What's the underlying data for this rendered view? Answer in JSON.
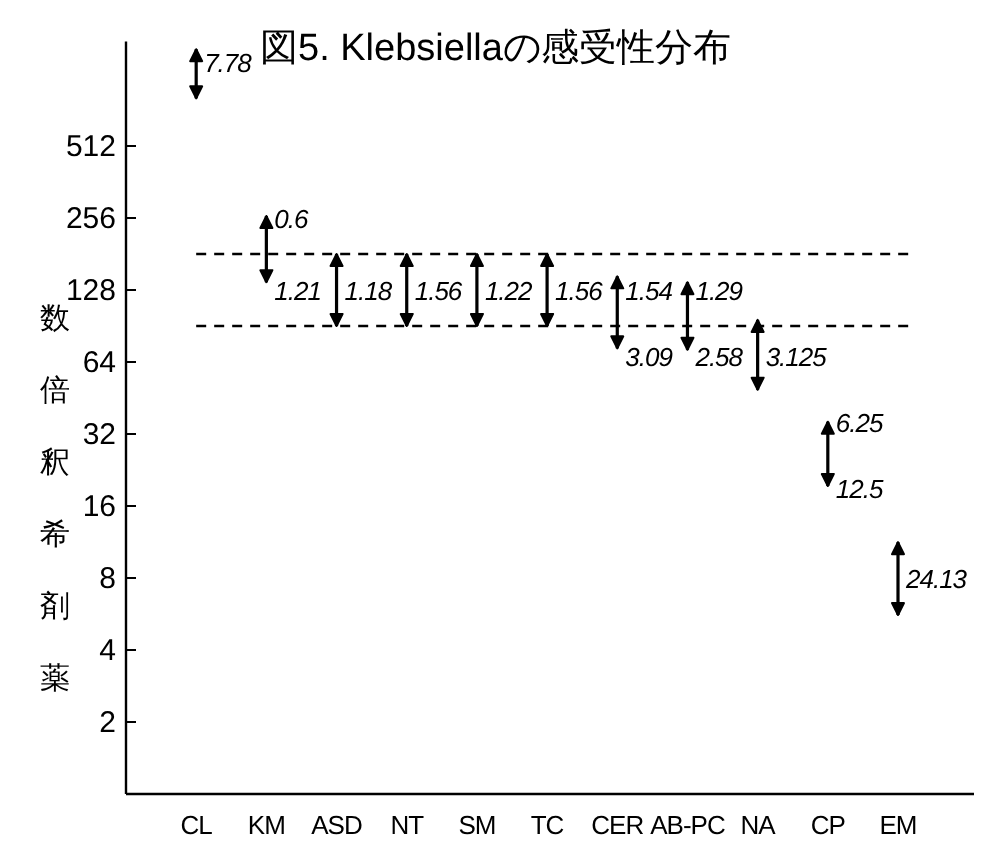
{
  "chart_data": {
    "type": "bar",
    "title": "図5. Klebsiellaの感受性分布",
    "ylabel": "薬剤希釈倍数",
    "categories": [
      "CL",
      "KM",
      "ASD",
      "NT",
      "SM",
      "TC",
      "CER",
      "AB-PC",
      "NA",
      "CP",
      "EM"
    ],
    "base": [
      810,
      138,
      90.5,
      90.5,
      90.5,
      90.5,
      73,
      72,
      49,
      19.4,
      5.6
    ],
    "values": [
      490,
      123,
      90.5,
      90.5,
      90.5,
      90.5,
      73,
      66,
      47,
      16.6,
      5.7
    ],
    "color": "#000000",
    "log": true,
    "ylim": [
      1,
      1400
    ],
    "yticks": [
      2,
      4,
      8,
      16,
      32,
      64,
      128,
      256,
      512
    ],
    "ref_lines": [
      {
        "axis": "y",
        "value": 181,
        "line_style": "dashed"
      },
      {
        "axis": "y",
        "value": 90.5,
        "line_style": "dashed"
      }
    ],
    "annotations": [
      "7.78",
      "0.6",
      "1.21",
      "1.18",
      "1.56",
      "1.22",
      "1.56",
      "1.54",
      "3.09",
      "1.29",
      "2.58",
      "3.125",
      "6.25",
      "12.5",
      "24.13"
    ]
  }
}
